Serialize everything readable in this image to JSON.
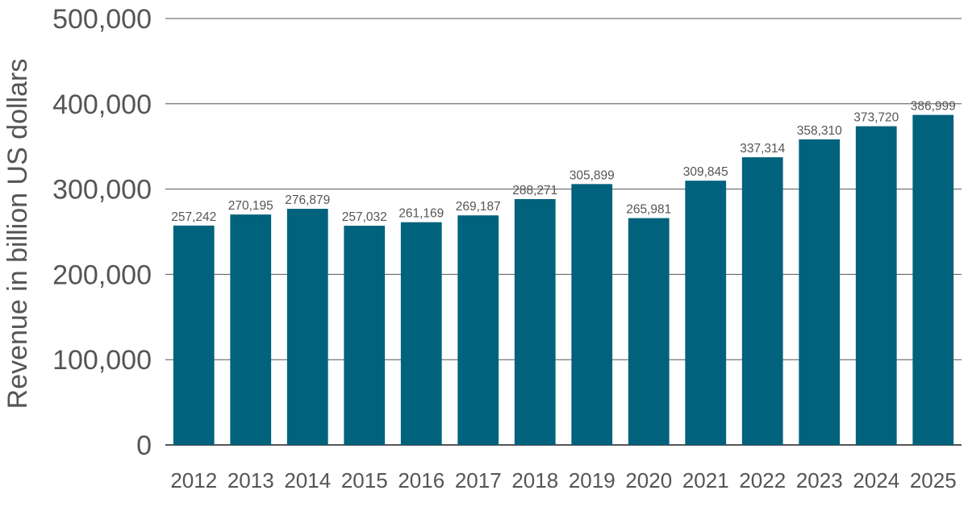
{
  "chart_data": {
    "type": "bar",
    "categories": [
      "2012",
      "2013",
      "2014",
      "2015",
      "2016",
      "2017",
      "2018",
      "2019",
      "2020",
      "2021",
      "2022",
      "2023",
      "2024",
      "2025"
    ],
    "values": [
      257242,
      270195,
      276879,
      257032,
      261169,
      269187,
      288271,
      305899,
      265981,
      309845,
      337314,
      358310,
      373720,
      386999
    ],
    "value_labels": [
      "257,242",
      "270,195",
      "276,879",
      "257,032",
      "261,169",
      "269,187",
      "288,271",
      "305,899",
      "265,981",
      "309,845",
      "337,314",
      "358,310",
      "373,720",
      "386,999"
    ],
    "title": "",
    "xlabel": "",
    "ylabel": "Revenue in billion US dollars",
    "ylim": [
      0,
      500000
    ],
    "yticks": [
      0,
      100000,
      200000,
      300000,
      400000,
      500000
    ],
    "ytick_labels": [
      "0",
      "100,000",
      "200,000",
      "300,000",
      "400,000",
      "500,000"
    ],
    "grid": true,
    "legend": "none",
    "colors": {
      "bar": "#00627c",
      "text": "#555555",
      "grid": "#555555"
    }
  }
}
